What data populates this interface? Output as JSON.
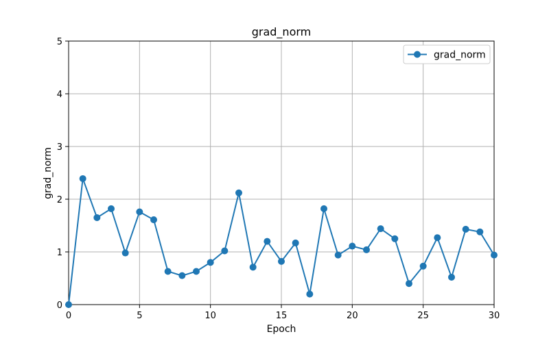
{
  "chart_data": {
    "type": "line",
    "title": "grad_norm",
    "xlabel": "Epoch",
    "ylabel": "grad_norm",
    "xlim": [
      0,
      30
    ],
    "ylim": [
      0,
      5
    ],
    "x_ticks": [
      0,
      5,
      10,
      15,
      20,
      25,
      30
    ],
    "y_ticks": [
      0,
      1,
      2,
      3,
      4,
      5
    ],
    "grid": true,
    "legend": {
      "placement": "top-right",
      "entries": [
        "grad_norm"
      ]
    },
    "series": [
      {
        "name": "grad_norm",
        "color": "#1f77b4",
        "marker": "circle",
        "x": [
          0,
          1,
          2,
          3,
          4,
          5,
          6,
          7,
          8,
          9,
          10,
          11,
          12,
          13,
          14,
          15,
          16,
          17,
          18,
          19,
          20,
          21,
          22,
          23,
          24,
          25,
          26,
          27,
          28,
          29,
          30
        ],
        "values": [
          0.0,
          2.39,
          1.65,
          1.82,
          0.98,
          1.76,
          1.61,
          0.63,
          0.55,
          0.63,
          0.8,
          1.02,
          2.12,
          0.71,
          1.2,
          0.82,
          1.17,
          0.2,
          1.82,
          0.94,
          1.11,
          1.04,
          1.44,
          1.25,
          0.4,
          0.73,
          1.27,
          0.52,
          1.43,
          1.38,
          0.94
        ]
      }
    ]
  }
}
